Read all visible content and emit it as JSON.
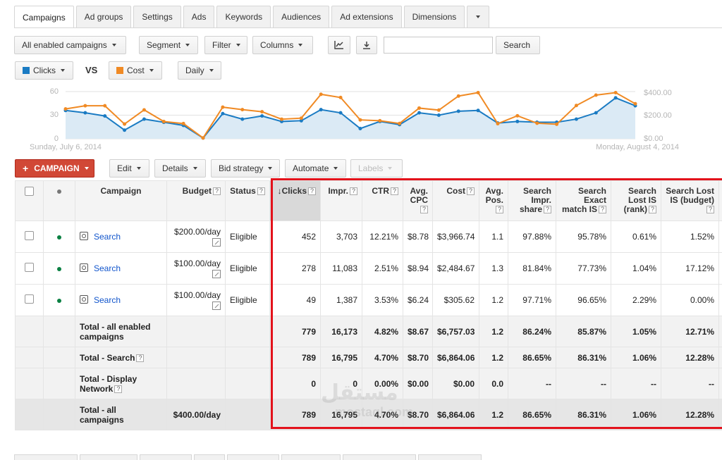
{
  "tabs": [
    {
      "label": "Campaigns",
      "active": true
    },
    {
      "label": "Ad groups"
    },
    {
      "label": "Settings"
    },
    {
      "label": "Ads"
    },
    {
      "label": "Keywords"
    },
    {
      "label": "Audiences"
    },
    {
      "label": "Ad extensions"
    },
    {
      "label": "Dimensions"
    }
  ],
  "toolbar": {
    "filter_campaigns": "All enabled campaigns",
    "segment": "Segment",
    "filter": "Filter",
    "columns": "Columns",
    "search_button": "Search",
    "search_value": ""
  },
  "chart_controls": {
    "metric1": "Clicks",
    "metric1_color": "#1a7bc3",
    "vs": "VS",
    "metric2": "Cost",
    "metric2_color": "#f08a24",
    "granularity": "Daily"
  },
  "chart_data": {
    "type": "line",
    "date_start": "Sunday, July 6, 2014",
    "date_end": "Monday, August 4, 2014",
    "y_left_ticks": [
      "60",
      "30",
      "0"
    ],
    "y_left_range": [
      0,
      60
    ],
    "y_right_ticks": [
      "$400.00",
      "$200.00",
      "$0.00"
    ],
    "y_right_range": [
      0,
      400
    ],
    "series": [
      {
        "name": "Clicks",
        "color": "#1a7bc3",
        "axis": "left",
        "values": [
          36,
          33,
          29,
          11,
          25,
          21,
          17,
          1,
          32,
          25,
          29,
          22,
          23,
          37,
          33,
          13,
          22,
          18,
          33,
          30,
          35,
          36,
          20,
          22,
          21,
          21,
          25,
          33,
          52,
          42
        ]
      },
      {
        "name": "Cost",
        "color": "#f08a24",
        "axis": "right",
        "values": [
          253,
          280,
          280,
          125,
          245,
          146,
          129,
          7,
          268,
          247,
          229,
          166,
          175,
          377,
          350,
          160,
          153,
          130,
          260,
          243,
          362,
          391,
          128,
          195,
          132,
          123,
          282,
          370,
          391,
          297
        ]
      }
    ]
  },
  "actions": {
    "campaign": "CAMPAIGN",
    "edit": "Edit",
    "details": "Details",
    "bid_strategy": "Bid strategy",
    "automate": "Automate",
    "labels": "Labels"
  },
  "table": {
    "headers": {
      "campaign": "Campaign",
      "budget": "Budget",
      "status": "Status",
      "clicks": "Clicks",
      "impr": "Impr.",
      "ctr": "CTR",
      "avg_cpc_1": "Avg.",
      "avg_cpc_2": "CPC",
      "cost": "Cost",
      "avg_pos_1": "Avg.",
      "avg_pos_2": "Pos.",
      "sis_1": "Search",
      "sis_2": "Impr.",
      "sis_3": "share",
      "sem_1": "Search",
      "sem_2": "Exact",
      "sem_3": "match IS",
      "slr_1": "Search",
      "slr_2": "Lost IS",
      "slr_3": "(rank)",
      "slb_1": "Search Lost",
      "slb_2": "IS (budget)"
    },
    "rows": [
      {
        "campaign": "Search",
        "budget": "$200.00/day",
        "status": "Eligible",
        "clicks": "452",
        "impr": "3,703",
        "ctr": "12.21%",
        "cpc": "$8.78",
        "cost": "$3,966.74",
        "pos": "1.1",
        "sis": "97.88%",
        "sem": "95.78%",
        "slr": "0.61%",
        "slb": "1.52%"
      },
      {
        "campaign": "Search",
        "budget": "$100.00/day",
        "status": "Eligible",
        "clicks": "278",
        "impr": "11,083",
        "ctr": "2.51%",
        "cpc": "$8.94",
        "cost": "$2,484.67",
        "pos": "1.3",
        "sis": "81.84%",
        "sem": "77.73%",
        "slr": "1.04%",
        "slb": "17.12%"
      },
      {
        "campaign": "Search",
        "budget": "$100.00/day",
        "status": "Eligible",
        "clicks": "49",
        "impr": "1,387",
        "ctr": "3.53%",
        "cpc": "$6.24",
        "cost": "$305.62",
        "pos": "1.2",
        "sis": "97.71%",
        "sem": "96.65%",
        "slr": "2.29%",
        "slb": "0.00%"
      }
    ],
    "totals": [
      {
        "label_1": "Total - all enabled",
        "label_2": "campaigns",
        "clicks": "779",
        "impr": "16,173",
        "ctr": "4.82%",
        "cpc": "$8.67",
        "cost": "$6,757.03",
        "pos": "1.2",
        "sis": "86.24%",
        "sem": "85.87%",
        "slr": "1.05%",
        "slb": "12.71%"
      },
      {
        "label_1": "Total - Search",
        "clicks": "789",
        "impr": "16,795",
        "ctr": "4.70%",
        "cpc": "$8.70",
        "cost": "$6,864.06",
        "pos": "1.2",
        "sis": "86.65%",
        "sem": "86.31%",
        "slr": "1.06%",
        "slb": "12.28%"
      },
      {
        "label_1": "Total - Display",
        "label_2": "Network",
        "clicks": "0",
        "impr": "0",
        "ctr": "0.00%",
        "cpc": "$0.00",
        "cost": "$0.00",
        "pos": "0.0",
        "sis": "--",
        "sem": "--",
        "slr": "--",
        "slb": "--"
      }
    ],
    "grand_total": {
      "label_1": "Total - all",
      "label_2": "campaigns",
      "budget": "$400.00/day",
      "clicks": "789",
      "impr": "16,795",
      "ctr": "4.70%",
      "cpc": "$8.70",
      "cost": "$6,864.06",
      "pos": "1.2",
      "sis": "86.65%",
      "sem": "86.31%",
      "slr": "1.06%",
      "slb": "12.28%"
    }
  },
  "watermark": {
    "arabic": "مستقل",
    "latin": "mostaql.com"
  }
}
